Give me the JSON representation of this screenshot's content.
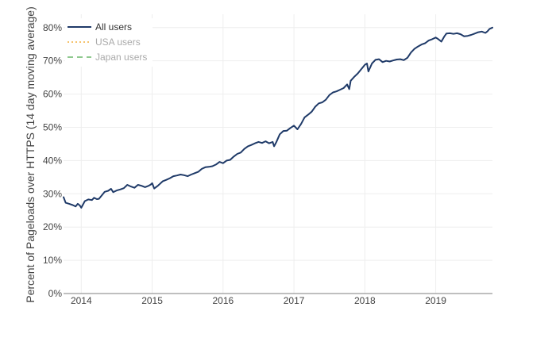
{
  "chart_data": {
    "type": "line",
    "ylabel": "Percent of Pageloads over HTTPS (14 day moving average)",
    "xlabel": "",
    "x_ticks": [
      "2014",
      "2015",
      "2016",
      "2017",
      "2018",
      "2019"
    ],
    "y_ticks": [
      "0%",
      "10%",
      "20%",
      "30%",
      "40%",
      "50%",
      "60%",
      "70%",
      "80%"
    ],
    "xlim": [
      2013.75,
      2019.8
    ],
    "ylim": [
      0,
      84
    ],
    "grid": true,
    "legend_position": "top-left",
    "series": [
      {
        "name": "All users",
        "color": "#1f3a68",
        "dash": "solid",
        "visible": true,
        "x": [
          2013.75,
          2013.78,
          2013.83,
          2013.88,
          2013.92,
          2013.95,
          2013.98,
          2014.0,
          2014.03,
          2014.05,
          2014.1,
          2014.15,
          2014.18,
          2014.22,
          2014.25,
          2014.3,
          2014.33,
          2014.38,
          2014.42,
          2014.45,
          2014.5,
          2014.55,
          2014.6,
          2014.65,
          2014.7,
          2014.75,
          2014.8,
          2014.85,
          2014.9,
          2014.95,
          2014.98,
          2015.0,
          2015.03,
          2015.08,
          2015.15,
          2015.2,
          2015.25,
          2015.3,
          2015.35,
          2015.4,
          2015.45,
          2015.5,
          2015.55,
          2015.6,
          2015.65,
          2015.7,
          2015.75,
          2015.8,
          2015.85,
          2015.9,
          2015.95,
          2016.0,
          2016.05,
          2016.1,
          2016.15,
          2016.2,
          2016.25,
          2016.3,
          2016.35,
          2016.4,
          2016.45,
          2016.5,
          2016.55,
          2016.6,
          2016.65,
          2016.7,
          2016.72,
          2016.75,
          2016.8,
          2016.85,
          2016.9,
          2016.95,
          2017.0,
          2017.05,
          2017.1,
          2017.15,
          2017.2,
          2017.25,
          2017.3,
          2017.35,
          2017.4,
          2017.45,
          2017.5,
          2017.55,
          2017.6,
          2017.65,
          2017.7,
          2017.75,
          2017.78,
          2017.8,
          2017.85,
          2017.9,
          2017.95,
          2018.0,
          2018.03,
          2018.05,
          2018.1,
          2018.15,
          2018.2,
          2018.25,
          2018.3,
          2018.35,
          2018.4,
          2018.45,
          2018.5,
          2018.55,
          2018.6,
          2018.65,
          2018.7,
          2018.75,
          2018.8,
          2018.85,
          2018.9,
          2018.95,
          2019.0,
          2019.03,
          2019.08,
          2019.12,
          2019.15,
          2019.2,
          2019.25,
          2019.3,
          2019.35,
          2019.4,
          2019.45,
          2019.5,
          2019.55,
          2019.6,
          2019.65,
          2019.7,
          2019.73,
          2019.76,
          2019.8
        ],
        "y": [
          29,
          27.3,
          27,
          26.6,
          26.2,
          27,
          26.5,
          25.8,
          27,
          27.8,
          28.3,
          28.1,
          28.8,
          28.4,
          28.5,
          29.8,
          30.6,
          30.9,
          31.5,
          30.5,
          31,
          31.3,
          31.7,
          32.7,
          32.2,
          31.8,
          32.7,
          32.4,
          32,
          32.4,
          32.8,
          33.2,
          31.6,
          32.4,
          33.8,
          34.2,
          34.7,
          35.3,
          35.5,
          35.8,
          35.6,
          35.3,
          35.8,
          36.2,
          36.6,
          37.5,
          38,
          38.1,
          38.3,
          38.8,
          39.6,
          39.2,
          40,
          40.2,
          41.2,
          42,
          42.4,
          43.5,
          44.3,
          44.7,
          45.2,
          45.6,
          45.3,
          45.8,
          45.2,
          45.6,
          44.3,
          45.5,
          47.9,
          48.9,
          49,
          49.8,
          50.5,
          49.4,
          51,
          53,
          53.8,
          54.7,
          56.2,
          57.2,
          57.5,
          58.3,
          59.7,
          60.5,
          60.8,
          61.3,
          61.8,
          62.9,
          61.5,
          64,
          65.2,
          66.2,
          67.5,
          68.8,
          69.2,
          66.8,
          69.2,
          70.3,
          70.5,
          69.6,
          70,
          69.8,
          70.1,
          70.4,
          70.5,
          70.2,
          70.9,
          72.5,
          73.6,
          74.3,
          74.9,
          75.3,
          76.1,
          76.5,
          77,
          76.6,
          75.8,
          77.3,
          78.2,
          78.3,
          78.1,
          78.3,
          78,
          77.4,
          77.5,
          77.8,
          78.2,
          78.6,
          78.8,
          78.4,
          78.9,
          79.6,
          80
        ]
      },
      {
        "name": "USA users",
        "color": "#f5c26b",
        "dash": "dotted",
        "visible": false,
        "x": [],
        "y": []
      },
      {
        "name": "Japan users",
        "color": "#8fc98f",
        "dash": "dashed",
        "visible": false,
        "x": [],
        "y": []
      }
    ]
  },
  "colors": {
    "grid": "#eeeeee",
    "axis": "#999999",
    "text": "#444444",
    "legend_hidden_text": "#aaaaaa",
    "legend_active_text": "#333333"
  }
}
